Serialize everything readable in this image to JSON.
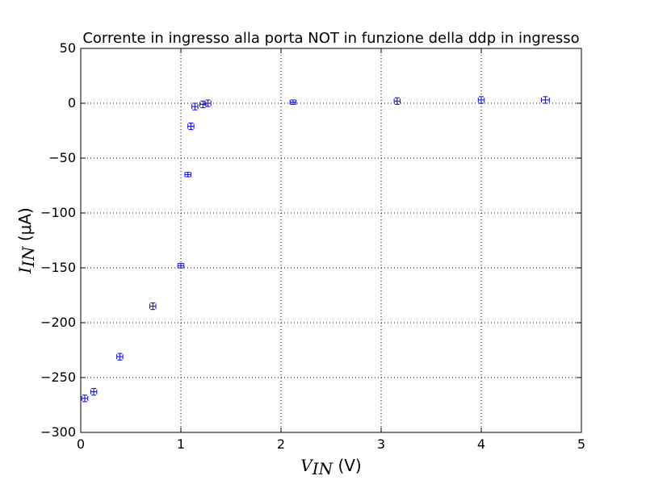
{
  "chart_data": {
    "type": "scatter",
    "title": "Corrente in ingresso alla porta NOT in funzione della ddp in ingresso",
    "xlabel": {
      "symbol": "V",
      "subscript": "IN",
      "unit": " (V)"
    },
    "ylabel": {
      "symbol": "I",
      "subscript": "IN",
      "unit": " (μA)"
    },
    "xlim": [
      0,
      5
    ],
    "ylim": [
      -300,
      50
    ],
    "xticks": [
      0,
      1,
      2,
      3,
      4,
      5
    ],
    "yticks": [
      -300,
      -250,
      -200,
      -150,
      -100,
      -50,
      0,
      50
    ],
    "grid": true,
    "marker_color": "#0000ff",
    "points": [
      {
        "x": 0.04,
        "y": -269,
        "xerr": 0.03,
        "yerr": 3
      },
      {
        "x": 0.13,
        "y": -263,
        "xerr": 0.03,
        "yerr": 3
      },
      {
        "x": 0.39,
        "y": -231,
        "xerr": 0.03,
        "yerr": 3
      },
      {
        "x": 0.72,
        "y": -185,
        "xerr": 0.03,
        "yerr": 3
      },
      {
        "x": 1.0,
        "y": -148,
        "xerr": 0.03,
        "yerr": 2
      },
      {
        "x": 1.07,
        "y": -65,
        "xerr": 0.03,
        "yerr": 2
      },
      {
        "x": 1.1,
        "y": -21,
        "xerr": 0.03,
        "yerr": 3
      },
      {
        "x": 1.14,
        "y": -3,
        "xerr": 0.03,
        "yerr": 3
      },
      {
        "x": 1.22,
        "y": -1,
        "xerr": 0.03,
        "yerr": 3
      },
      {
        "x": 1.27,
        "y": 0,
        "xerr": 0.03,
        "yerr": 3
      },
      {
        "x": 2.12,
        "y": 1,
        "xerr": 0.03,
        "yerr": 2
      },
      {
        "x": 3.16,
        "y": 2,
        "xerr": 0.03,
        "yerr": 3
      },
      {
        "x": 4.0,
        "y": 3,
        "xerr": 0.03,
        "yerr": 3
      },
      {
        "x": 4.64,
        "y": 3,
        "xerr": 0.04,
        "yerr": 3
      }
    ]
  }
}
